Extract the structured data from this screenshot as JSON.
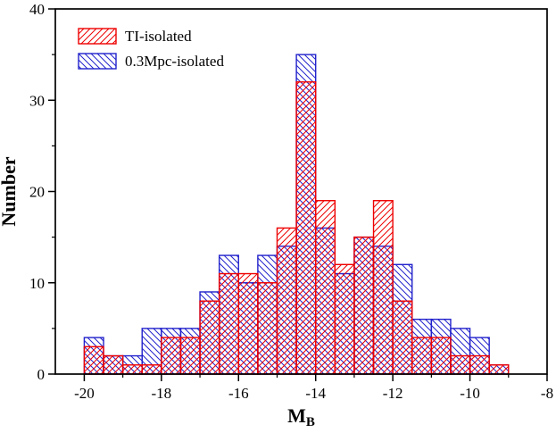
{
  "figure": {
    "background": "#ffffff",
    "frame_color": "#000000",
    "ylabel": "Number",
    "xlabel_main": "M",
    "xlabel_sub": "B"
  },
  "chart_data": {
    "type": "bar",
    "subtype": "overlapping-hatched-histogram",
    "title": "",
    "xlabel": "M_B",
    "ylabel": "Number",
    "xlim": [
      -20.75,
      -8
    ],
    "ylim": [
      0,
      40
    ],
    "x_major_ticks": [
      -20,
      -18,
      -16,
      -14,
      -12,
      -10,
      -8
    ],
    "x_minor_ticks": [
      -19,
      -17,
      -15,
      -13,
      -11,
      -9
    ],
    "y_major_ticks": [
      0,
      10,
      20,
      30,
      40
    ],
    "y_minor_ticks": [
      5,
      15,
      25,
      35
    ],
    "bin_width": 0.5,
    "bin_left_edges": [
      -20,
      -19.5,
      -19,
      -18.5,
      -18,
      -17.5,
      -17,
      -16.5,
      -16,
      -15.5,
      -15,
      -14.5,
      -14,
      -13.5,
      -13,
      -12.5,
      -12,
      -11.5,
      -11,
      -10.5,
      -10,
      -9.5
    ],
    "legend_position": "top-left",
    "grid": false,
    "series": [
      {
        "name": "0.3Mpc-isolated",
        "color": "#2222cc",
        "hatch": "\\\\\\\\",
        "values": [
          4,
          2,
          2,
          5,
          5,
          5,
          9,
          13,
          10,
          13,
          14,
          35,
          16,
          11,
          15,
          14,
          12,
          6,
          6,
          5,
          4,
          1
        ]
      },
      {
        "name": "TI-isolated",
        "color": "#ee0000",
        "hatch": "////",
        "values": [
          3,
          2,
          1,
          1,
          4,
          4,
          8,
          11,
          11,
          10,
          16,
          32,
          19,
          12,
          15,
          19,
          8,
          4,
          4,
          2,
          2,
          1
        ]
      }
    ],
    "legend_order": [
      "TI-isolated",
      "0.3Mpc-isolated"
    ]
  }
}
